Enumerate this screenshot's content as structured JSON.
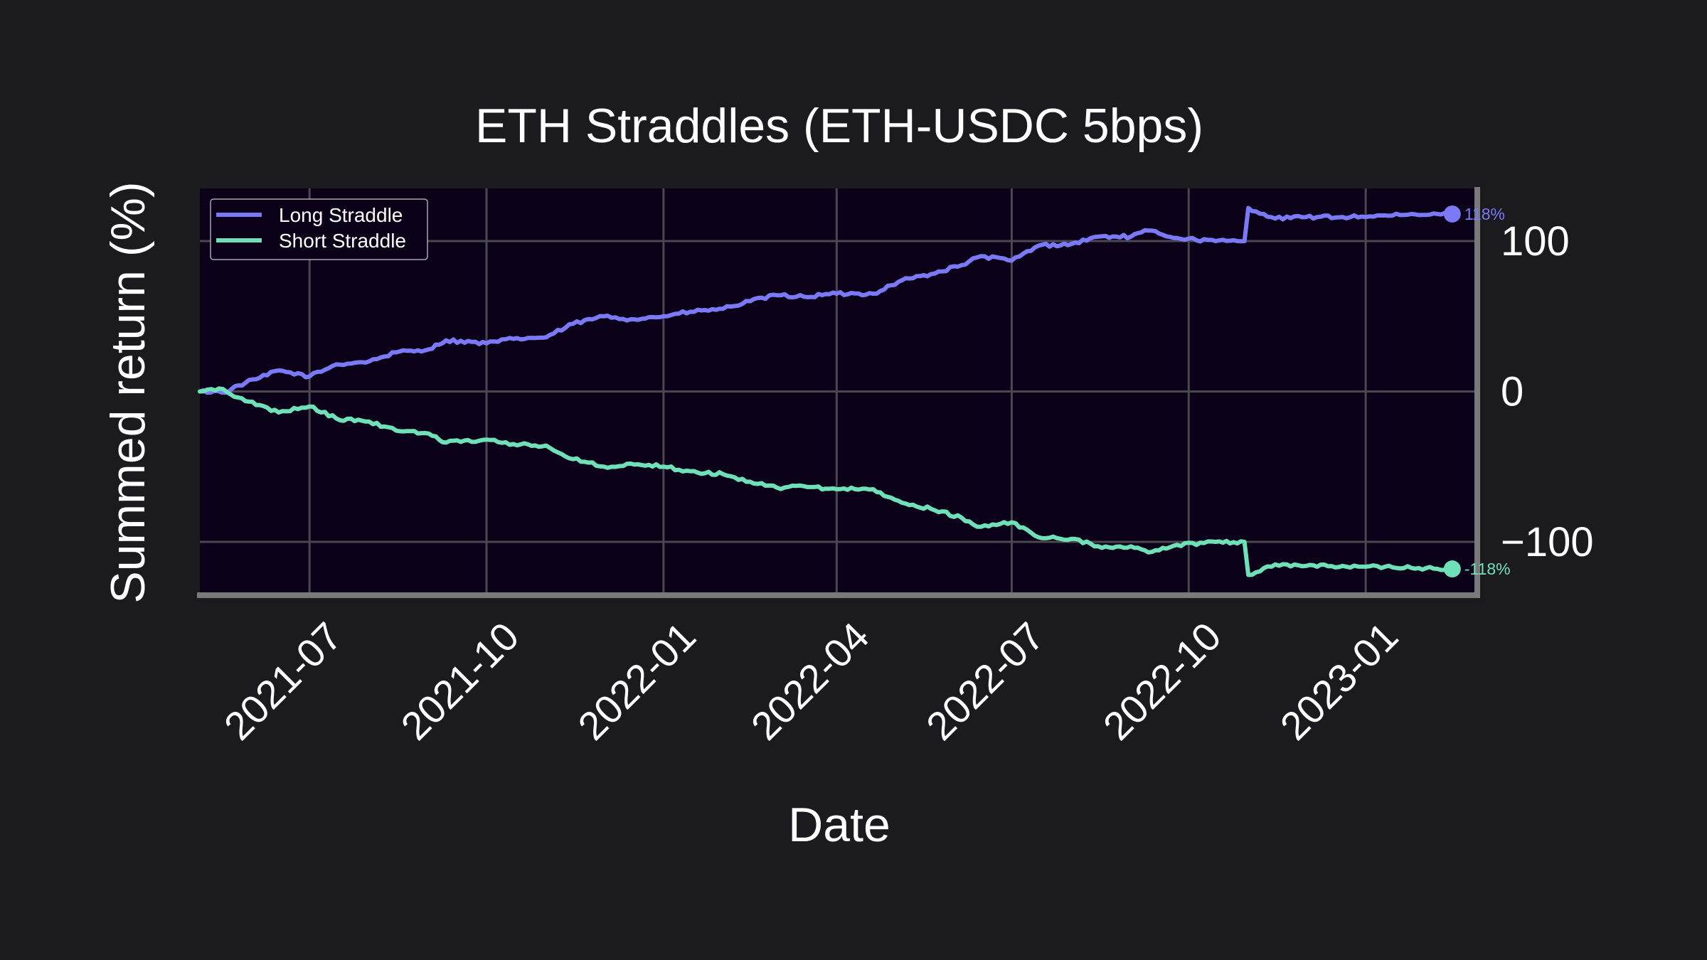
{
  "chart_data": {
    "type": "line",
    "title": "ETH Straddles (ETH-USDC 5bps)",
    "xlabel": "Date",
    "ylabel": "Summed return (%)",
    "x_ticks": [
      "2021-07",
      "2021-10",
      "2022-01",
      "2022-04",
      "2022-07",
      "2022-10",
      "2023-01"
    ],
    "y_ticks": [
      "100",
      "0",
      "−100"
    ],
    "y_tick_values": [
      100,
      0,
      -100
    ],
    "ylim": [
      -135,
      135
    ],
    "xlim": [
      "2021-05-05",
      "2023-02-28"
    ],
    "y_axis_side": "right",
    "grid": true,
    "legend_position": "upper-left",
    "series": [
      {
        "name": "Long Straddle",
        "color": "#7b79f5",
        "end_label": "118%",
        "points": [
          [
            "2021-05-05",
            0
          ],
          [
            "2021-05-20",
            0
          ],
          [
            "2021-05-25",
            4
          ],
          [
            "2021-06-05",
            9
          ],
          [
            "2021-06-15",
            14
          ],
          [
            "2021-07-01",
            10
          ],
          [
            "2021-07-15",
            18
          ],
          [
            "2021-08-01",
            20
          ],
          [
            "2021-08-15",
            26
          ],
          [
            "2021-09-01",
            28
          ],
          [
            "2021-09-10",
            34
          ],
          [
            "2021-10-01",
            32
          ],
          [
            "2021-10-15",
            35
          ],
          [
            "2021-11-01",
            36
          ],
          [
            "2021-11-15",
            45
          ],
          [
            "2021-12-01",
            50
          ],
          [
            "2021-12-15",
            48
          ],
          [
            "2022-01-01",
            50
          ],
          [
            "2022-01-15",
            53
          ],
          [
            "2022-02-01",
            55
          ],
          [
            "2022-02-15",
            60
          ],
          [
            "2022-03-01",
            64
          ],
          [
            "2022-03-15",
            63
          ],
          [
            "2022-04-01",
            65
          ],
          [
            "2022-04-20",
            65
          ],
          [
            "2022-05-05",
            74
          ],
          [
            "2022-05-20",
            78
          ],
          [
            "2022-06-05",
            84
          ],
          [
            "2022-06-15",
            90
          ],
          [
            "2022-07-01",
            87
          ],
          [
            "2022-07-15",
            97
          ],
          [
            "2022-08-01",
            98
          ],
          [
            "2022-08-15",
            103
          ],
          [
            "2022-09-01",
            103
          ],
          [
            "2022-09-10",
            107
          ],
          [
            "2022-09-25",
            102
          ],
          [
            "2022-10-15",
            100
          ],
          [
            "2022-10-30",
            100
          ],
          [
            "2022-11-01",
            122
          ],
          [
            "2022-11-15",
            115
          ],
          [
            "2022-12-01",
            116
          ],
          [
            "2022-12-20",
            116
          ],
          [
            "2023-01-15",
            117
          ],
          [
            "2023-02-15",
            118
          ]
        ]
      },
      {
        "name": "Short Straddle",
        "color": "#6fe0b8",
        "end_label": "-118%",
        "points": [
          [
            "2021-05-05",
            0
          ],
          [
            "2021-05-15",
            2
          ],
          [
            "2021-05-25",
            -4
          ],
          [
            "2021-06-05",
            -9
          ],
          [
            "2021-06-15",
            -14
          ],
          [
            "2021-07-01",
            -10
          ],
          [
            "2021-07-15",
            -18
          ],
          [
            "2021-08-01",
            -20
          ],
          [
            "2021-08-15",
            -26
          ],
          [
            "2021-09-01",
            -28
          ],
          [
            "2021-09-10",
            -34
          ],
          [
            "2021-10-01",
            -32
          ],
          [
            "2021-10-15",
            -35
          ],
          [
            "2021-11-01",
            -36
          ],
          [
            "2021-11-15",
            -45
          ],
          [
            "2021-12-01",
            -50
          ],
          [
            "2021-12-15",
            -48
          ],
          [
            "2022-01-01",
            -50
          ],
          [
            "2022-01-15",
            -53
          ],
          [
            "2022-02-01",
            -55
          ],
          [
            "2022-02-15",
            -60
          ],
          [
            "2022-03-01",
            -64
          ],
          [
            "2022-03-15",
            -63
          ],
          [
            "2022-04-01",
            -65
          ],
          [
            "2022-04-20",
            -65
          ],
          [
            "2022-05-05",
            -74
          ],
          [
            "2022-05-20",
            -78
          ],
          [
            "2022-06-05",
            -84
          ],
          [
            "2022-06-15",
            -90
          ],
          [
            "2022-07-01",
            -87
          ],
          [
            "2022-07-15",
            -97
          ],
          [
            "2022-08-01",
            -98
          ],
          [
            "2022-08-15",
            -103
          ],
          [
            "2022-09-01",
            -103
          ],
          [
            "2022-09-10",
            -107
          ],
          [
            "2022-09-25",
            -102
          ],
          [
            "2022-10-15",
            -100
          ],
          [
            "2022-10-30",
            -100
          ],
          [
            "2022-11-01",
            -122
          ],
          [
            "2022-11-15",
            -115
          ],
          [
            "2022-12-01",
            -116
          ],
          [
            "2022-12-20",
            -116
          ],
          [
            "2023-01-15",
            -117
          ],
          [
            "2023-02-15",
            -118
          ]
        ]
      }
    ]
  },
  "colors": {
    "page_background": "#1b1a1f",
    "plot_background": "#0b0119",
    "grid": "#4a474f",
    "spine": "#7a7a7a",
    "text": "#ffffff"
  }
}
